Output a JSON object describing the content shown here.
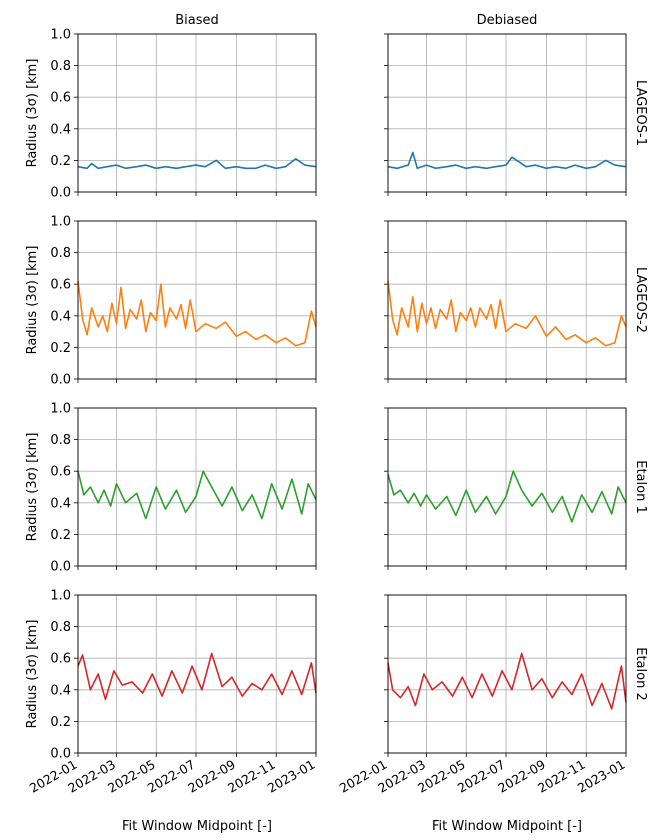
{
  "columns": [
    "Biased",
    "Debiased"
  ],
  "rows": [
    "LAGEOS-1",
    "LAGEOS-2",
    "Etalon 1",
    "Etalon 2"
  ],
  "ylabel": "Radius (3σ) [km]",
  "xlabel": "Fit Window Midpoint [-]",
  "yticks": [
    "0.0",
    "0.2",
    "0.4",
    "0.6",
    "0.8",
    "1.0"
  ],
  "xticks": [
    "2022-01",
    "2022-03",
    "2022-05",
    "2022-07",
    "2022-09",
    "2022-11",
    "2023-01"
  ],
  "colors": [
    "#1f77b4",
    "#ff7f0e",
    "#2ca02c",
    "#d62728"
  ],
  "chart_data": {
    "type": "line",
    "title": "",
    "xlabel": "Fit Window Midpoint [-]",
    "ylabel": "Radius (3σ) [km]",
    "xlim": [
      "2022-01-01",
      "2023-01-01"
    ],
    "ylim": [
      0,
      1
    ],
    "grid": true,
    "panels": [
      {
        "row": "LAGEOS-1",
        "column": "Biased",
        "x": [
          "2022-01-01",
          "2022-01-15",
          "2022-01-22",
          "2022-02-01",
          "2022-02-15",
          "2022-03-01",
          "2022-03-15",
          "2022-04-01",
          "2022-04-15",
          "2022-05-01",
          "2022-05-15",
          "2022-06-01",
          "2022-06-15",
          "2022-07-01",
          "2022-07-15",
          "2022-08-01",
          "2022-08-15",
          "2022-09-01",
          "2022-09-15",
          "2022-10-01",
          "2022-10-15",
          "2022-11-01",
          "2022-11-15",
          "2022-12-01",
          "2022-12-15",
          "2023-01-01"
        ],
        "y": [
          0.16,
          0.15,
          0.18,
          0.15,
          0.16,
          0.17,
          0.15,
          0.16,
          0.17,
          0.15,
          0.16,
          0.15,
          0.16,
          0.17,
          0.16,
          0.2,
          0.15,
          0.16,
          0.15,
          0.15,
          0.17,
          0.15,
          0.16,
          0.21,
          0.17,
          0.16
        ]
      },
      {
        "row": "LAGEOS-1",
        "column": "Debiased",
        "x": [
          "2022-01-01",
          "2022-01-15",
          "2022-02-01",
          "2022-02-08",
          "2022-02-15",
          "2022-03-01",
          "2022-03-15",
          "2022-04-01",
          "2022-04-15",
          "2022-05-01",
          "2022-05-15",
          "2022-06-01",
          "2022-06-15",
          "2022-07-01",
          "2022-07-10",
          "2022-08-01",
          "2022-08-15",
          "2022-09-01",
          "2022-09-15",
          "2022-10-01",
          "2022-10-15",
          "2022-11-01",
          "2022-11-15",
          "2022-12-01",
          "2022-12-15",
          "2023-01-01"
        ],
        "y": [
          0.16,
          0.15,
          0.17,
          0.25,
          0.15,
          0.17,
          0.15,
          0.16,
          0.17,
          0.15,
          0.16,
          0.15,
          0.16,
          0.17,
          0.22,
          0.16,
          0.17,
          0.15,
          0.16,
          0.15,
          0.17,
          0.15,
          0.16,
          0.2,
          0.17,
          0.16
        ]
      },
      {
        "row": "LAGEOS-2",
        "column": "Biased",
        "x": [
          "2022-01-01",
          "2022-01-08",
          "2022-01-15",
          "2022-01-22",
          "2022-02-01",
          "2022-02-08",
          "2022-02-15",
          "2022-02-22",
          "2022-03-01",
          "2022-03-08",
          "2022-03-15",
          "2022-03-22",
          "2022-04-01",
          "2022-04-08",
          "2022-04-15",
          "2022-04-22",
          "2022-05-01",
          "2022-05-08",
          "2022-05-15",
          "2022-05-22",
          "2022-06-01",
          "2022-06-08",
          "2022-06-15",
          "2022-06-22",
          "2022-07-01",
          "2022-07-15",
          "2022-08-01",
          "2022-08-15",
          "2022-09-01",
          "2022-09-15",
          "2022-10-01",
          "2022-10-15",
          "2022-11-01",
          "2022-11-15",
          "2022-12-01",
          "2022-12-15",
          "2022-12-25",
          "2023-01-01"
        ],
        "y": [
          0.62,
          0.38,
          0.28,
          0.45,
          0.33,
          0.4,
          0.3,
          0.48,
          0.35,
          0.58,
          0.32,
          0.44,
          0.38,
          0.5,
          0.3,
          0.42,
          0.37,
          0.6,
          0.33,
          0.45,
          0.38,
          0.47,
          0.32,
          0.5,
          0.3,
          0.35,
          0.32,
          0.36,
          0.27,
          0.3,
          0.25,
          0.28,
          0.23,
          0.26,
          0.21,
          0.23,
          0.43,
          0.33
        ]
      },
      {
        "row": "LAGEOS-2",
        "column": "Debiased",
        "x": [
          "2022-01-01",
          "2022-01-08",
          "2022-01-15",
          "2022-01-22",
          "2022-02-01",
          "2022-02-08",
          "2022-02-15",
          "2022-02-22",
          "2022-03-01",
          "2022-03-08",
          "2022-03-15",
          "2022-03-22",
          "2022-04-01",
          "2022-04-08",
          "2022-04-15",
          "2022-04-22",
          "2022-05-01",
          "2022-05-08",
          "2022-05-15",
          "2022-05-22",
          "2022-06-01",
          "2022-06-08",
          "2022-06-15",
          "2022-06-22",
          "2022-07-01",
          "2022-07-15",
          "2022-08-01",
          "2022-08-15",
          "2022-09-01",
          "2022-09-15",
          "2022-10-01",
          "2022-10-15",
          "2022-11-01",
          "2022-11-15",
          "2022-12-01",
          "2022-12-15",
          "2022-12-25",
          "2023-01-01"
        ],
        "y": [
          0.62,
          0.38,
          0.28,
          0.45,
          0.33,
          0.52,
          0.3,
          0.48,
          0.35,
          0.45,
          0.32,
          0.44,
          0.38,
          0.5,
          0.3,
          0.42,
          0.37,
          0.45,
          0.33,
          0.45,
          0.38,
          0.47,
          0.32,
          0.5,
          0.3,
          0.35,
          0.32,
          0.4,
          0.27,
          0.33,
          0.25,
          0.28,
          0.23,
          0.26,
          0.21,
          0.23,
          0.4,
          0.33
        ]
      },
      {
        "row": "Etalon 1",
        "column": "Biased",
        "x": [
          "2022-01-01",
          "2022-01-10",
          "2022-01-20",
          "2022-02-01",
          "2022-02-10",
          "2022-02-20",
          "2022-03-01",
          "2022-03-15",
          "2022-04-01",
          "2022-04-15",
          "2022-05-01",
          "2022-05-15",
          "2022-06-01",
          "2022-06-15",
          "2022-07-01",
          "2022-07-12",
          "2022-07-25",
          "2022-08-10",
          "2022-08-25",
          "2022-09-10",
          "2022-09-25",
          "2022-10-10",
          "2022-10-25",
          "2022-11-10",
          "2022-11-25",
          "2022-12-10",
          "2022-12-20",
          "2023-01-01"
        ],
        "y": [
          0.6,
          0.45,
          0.5,
          0.4,
          0.48,
          0.38,
          0.52,
          0.4,
          0.46,
          0.3,
          0.5,
          0.36,
          0.48,
          0.34,
          0.44,
          0.6,
          0.5,
          0.38,
          0.5,
          0.35,
          0.45,
          0.3,
          0.52,
          0.36,
          0.55,
          0.33,
          0.52,
          0.42
        ]
      },
      {
        "row": "Etalon 1",
        "column": "Debiased",
        "x": [
          "2022-01-01",
          "2022-01-10",
          "2022-01-20",
          "2022-02-01",
          "2022-02-10",
          "2022-02-20",
          "2022-03-01",
          "2022-03-15",
          "2022-04-01",
          "2022-04-15",
          "2022-05-01",
          "2022-05-15",
          "2022-06-01",
          "2022-06-15",
          "2022-07-01",
          "2022-07-12",
          "2022-07-25",
          "2022-08-10",
          "2022-08-25",
          "2022-09-10",
          "2022-09-25",
          "2022-10-10",
          "2022-10-25",
          "2022-11-10",
          "2022-11-25",
          "2022-12-10",
          "2022-12-20",
          "2023-01-01"
        ],
        "y": [
          0.58,
          0.45,
          0.48,
          0.4,
          0.46,
          0.38,
          0.45,
          0.36,
          0.44,
          0.32,
          0.48,
          0.34,
          0.44,
          0.33,
          0.44,
          0.6,
          0.48,
          0.38,
          0.46,
          0.34,
          0.44,
          0.28,
          0.45,
          0.34,
          0.47,
          0.33,
          0.5,
          0.4
        ]
      },
      {
        "row": "Etalon 2",
        "column": "Biased",
        "x": [
          "2022-01-01",
          "2022-01-08",
          "2022-01-20",
          "2022-02-01",
          "2022-02-12",
          "2022-02-25",
          "2022-03-10",
          "2022-03-25",
          "2022-04-10",
          "2022-04-25",
          "2022-05-10",
          "2022-05-25",
          "2022-06-10",
          "2022-06-25",
          "2022-07-10",
          "2022-07-25",
          "2022-08-10",
          "2022-08-25",
          "2022-09-10",
          "2022-09-25",
          "2022-10-10",
          "2022-10-25",
          "2022-11-10",
          "2022-11-25",
          "2022-12-10",
          "2022-12-25",
          "2023-01-01"
        ],
        "y": [
          0.55,
          0.62,
          0.4,
          0.5,
          0.34,
          0.52,
          0.43,
          0.45,
          0.38,
          0.5,
          0.36,
          0.52,
          0.38,
          0.55,
          0.4,
          0.63,
          0.42,
          0.48,
          0.36,
          0.44,
          0.4,
          0.5,
          0.37,
          0.52,
          0.37,
          0.57,
          0.38
        ]
      },
      {
        "row": "Etalon 2",
        "column": "Debiased",
        "x": [
          "2022-01-01",
          "2022-01-08",
          "2022-01-20",
          "2022-02-01",
          "2022-02-12",
          "2022-02-25",
          "2022-03-10",
          "2022-03-25",
          "2022-04-10",
          "2022-04-25",
          "2022-05-10",
          "2022-05-25",
          "2022-06-10",
          "2022-06-25",
          "2022-07-10",
          "2022-07-25",
          "2022-08-10",
          "2022-08-25",
          "2022-09-10",
          "2022-09-25",
          "2022-10-10",
          "2022-10-25",
          "2022-11-10",
          "2022-11-25",
          "2022-12-10",
          "2022-12-25",
          "2023-01-01"
        ],
        "y": [
          0.57,
          0.4,
          0.35,
          0.42,
          0.3,
          0.5,
          0.4,
          0.45,
          0.36,
          0.48,
          0.35,
          0.5,
          0.36,
          0.52,
          0.4,
          0.63,
          0.4,
          0.47,
          0.35,
          0.45,
          0.37,
          0.5,
          0.3,
          0.44,
          0.28,
          0.55,
          0.32
        ]
      }
    ]
  }
}
